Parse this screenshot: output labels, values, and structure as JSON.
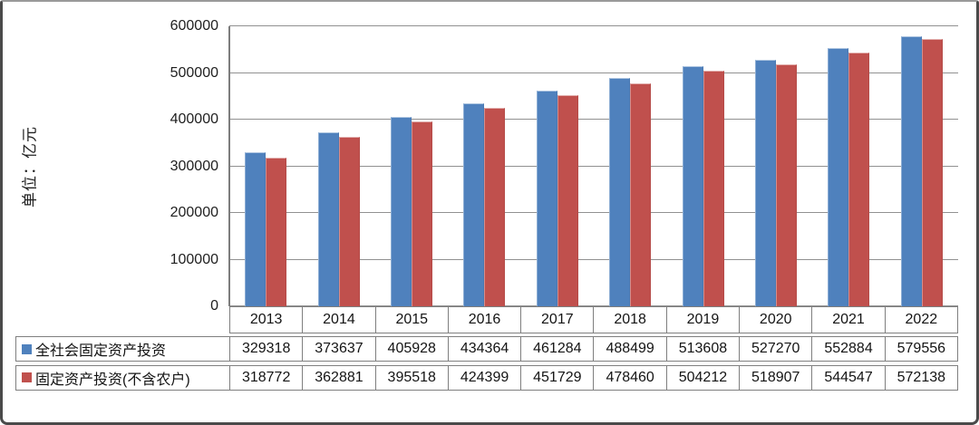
{
  "page": {
    "background": "#ffffff",
    "frame_border_color": "#4a4a4a"
  },
  "chart_data": {
    "type": "bar",
    "title": "",
    "ylabel": "单位：亿元",
    "xlabel": "",
    "categories": [
      "2013",
      "2014",
      "2015",
      "2016",
      "2017",
      "2018",
      "2019",
      "2020",
      "2021",
      "2022"
    ],
    "series": [
      {
        "name": "全社会固定资产投资",
        "color": "#4F81BD",
        "values": [
          329318,
          373637,
          405928,
          434364,
          461284,
          488499,
          513608,
          527270,
          552884,
          579556
        ]
      },
      {
        "name": "固定资产投资(不含农户)",
        "color": "#C0504D",
        "values": [
          318772,
          362881,
          395518,
          424399,
          451729,
          478460,
          504212,
          518907,
          544547,
          572138
        ]
      }
    ],
    "ylim": [
      0,
      600000
    ],
    "ytick_step": 100000,
    "grid": true,
    "legend_position": "data-table-left",
    "data_table_shown": true
  }
}
